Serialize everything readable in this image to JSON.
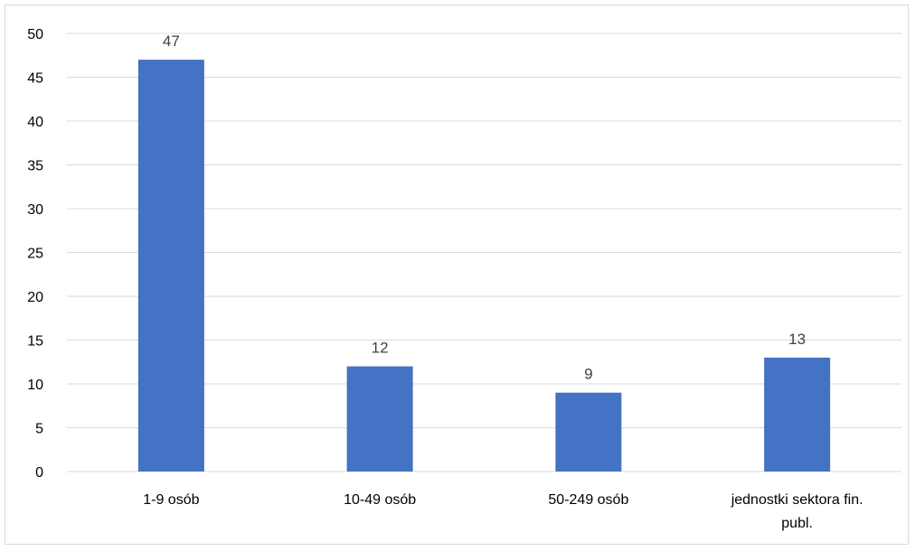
{
  "chart_data": {
    "type": "bar",
    "categories": [
      [
        "1-9 osób"
      ],
      [
        "10-49 osób"
      ],
      [
        "50-249 osób"
      ],
      [
        "jednostki sektora fin.",
        "publ."
      ]
    ],
    "values": [
      47,
      12,
      9,
      13
    ],
    "data_labels": [
      "47",
      "12",
      "9",
      "13"
    ],
    "title": "",
    "xlabel": "",
    "ylabel": "",
    "ylim": [
      0,
      50
    ],
    "yticks": [
      0,
      5,
      10,
      15,
      20,
      25,
      30,
      35,
      40,
      45,
      50
    ],
    "grid": true,
    "legend": "none",
    "bar_color": "#4472C4",
    "gridline_color": "#d9d9d9"
  }
}
